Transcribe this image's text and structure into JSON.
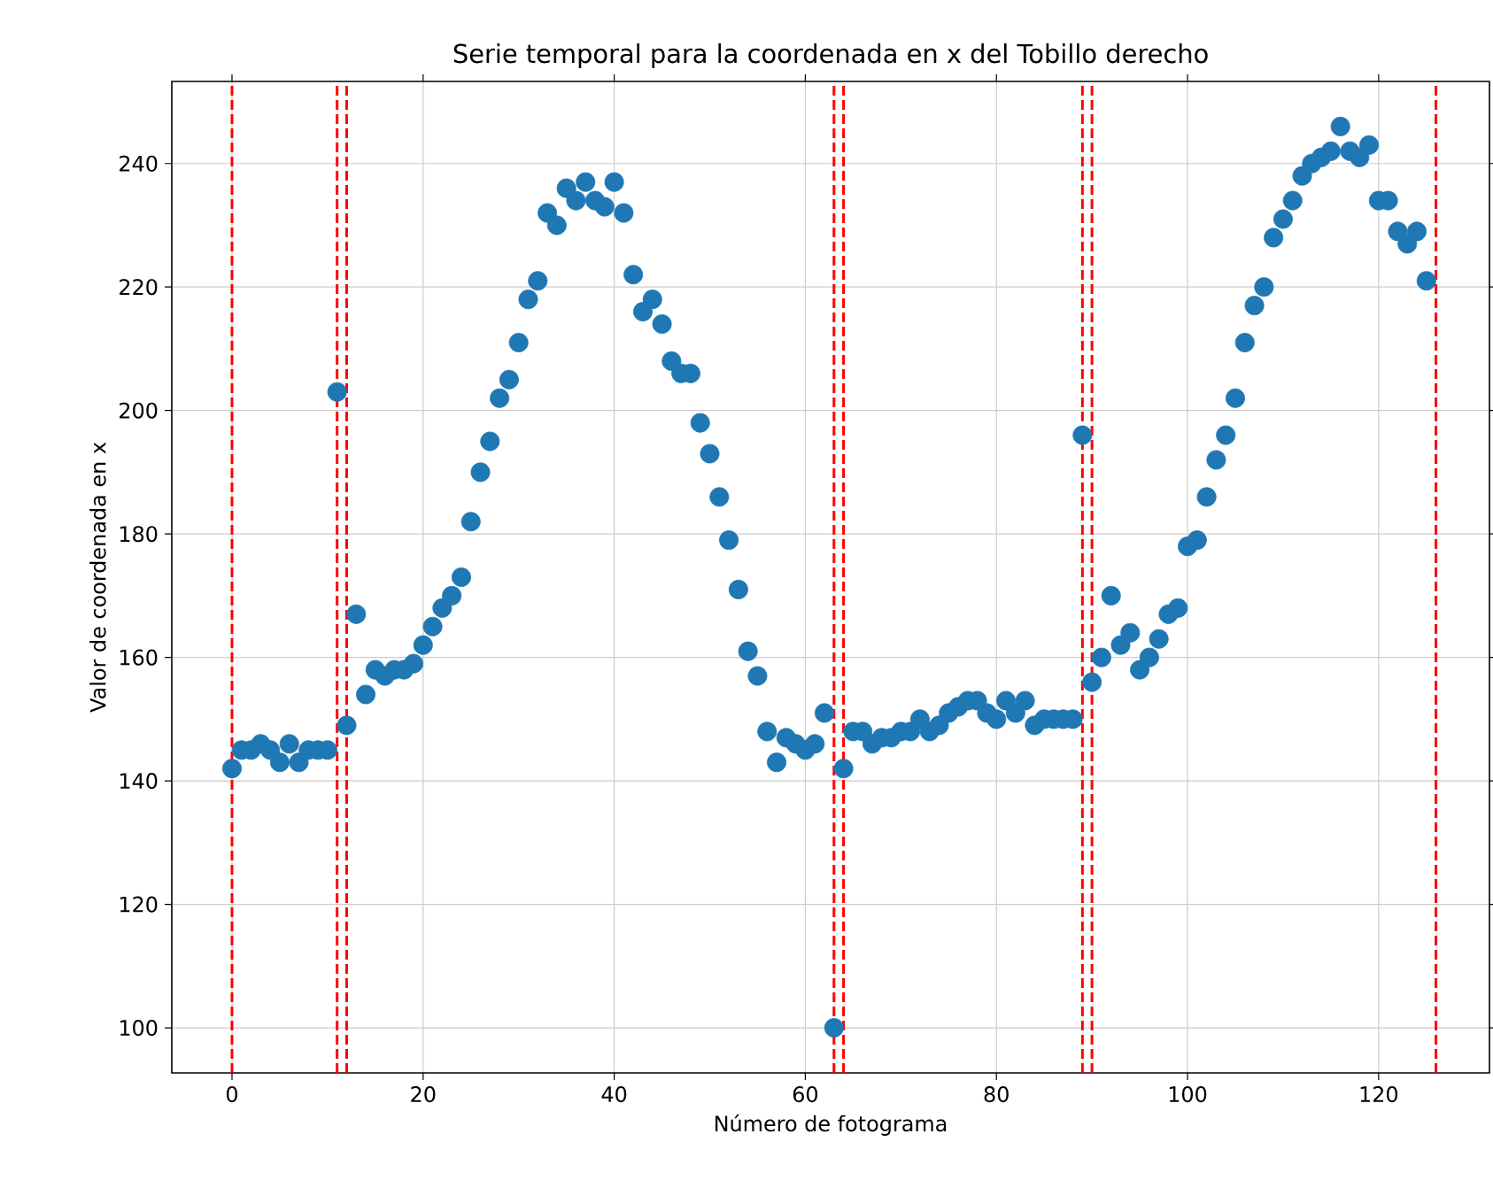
{
  "chart_data": {
    "type": "scatter",
    "title": "Serie temporal para la coordenada en x del Tobillo derecho",
    "xlabel": "Número de fotograma",
    "ylabel": "Valor de coordenada en x",
    "xlim": [
      -6.3,
      131.6
    ],
    "ylim": [
      92.7,
      253.3
    ],
    "xticks": [
      0,
      20,
      40,
      60,
      80,
      100,
      120
    ],
    "yticks": [
      100,
      120,
      140,
      160,
      180,
      200,
      220,
      240
    ],
    "grid": true,
    "marker": "circle",
    "series": [
      {
        "color": "#1f77b4",
        "x": [
          0,
          1,
          2,
          3,
          4,
          5,
          6,
          7,
          8,
          9,
          10,
          11,
          12,
          13,
          14,
          15,
          16,
          17,
          18,
          19,
          20,
          21,
          22,
          23,
          24,
          25,
          26,
          27,
          28,
          29,
          30,
          31,
          32,
          33,
          34,
          35,
          36,
          37,
          38,
          39,
          40,
          41,
          42,
          43,
          44,
          45,
          46,
          47,
          48,
          49,
          50,
          51,
          52,
          53,
          54,
          55,
          56,
          57,
          58,
          59,
          60,
          61,
          62,
          63,
          64,
          65,
          66,
          67,
          68,
          69,
          70,
          71,
          72,
          73,
          74,
          75,
          76,
          77,
          78,
          79,
          80,
          81,
          82,
          83,
          84,
          85,
          86,
          87,
          88,
          89,
          90,
          91,
          92,
          93,
          94,
          95,
          96,
          97,
          98,
          99,
          100,
          101,
          102,
          103,
          104,
          105,
          106,
          107,
          108,
          109,
          110,
          111,
          112,
          113,
          114,
          115,
          116,
          117,
          118,
          119,
          120,
          121,
          122,
          123,
          124,
          125
        ],
        "values": [
          142,
          145,
          145,
          146,
          145,
          143,
          146,
          143,
          145,
          145,
          145,
          203,
          149,
          167,
          154,
          158,
          157,
          158,
          158,
          159,
          162,
          165,
          168,
          170,
          173,
          182,
          190,
          195,
          202,
          205,
          211,
          218,
          221,
          232,
          230,
          236,
          234,
          237,
          234,
          233,
          237,
          232,
          222,
          216,
          218,
          214,
          208,
          206,
          206,
          198,
          193,
          186,
          179,
          171,
          161,
          157,
          148,
          143,
          147,
          146,
          145,
          146,
          151,
          100,
          142,
          148,
          148,
          146,
          147,
          147,
          148,
          148,
          150,
          148,
          149,
          151,
          152,
          153,
          153,
          151,
          150,
          153,
          151,
          153,
          149,
          150,
          150,
          150,
          150,
          196,
          156,
          160,
          170,
          162,
          164,
          158,
          160,
          163,
          167,
          168,
          178,
          179,
          186,
          192,
          196,
          202,
          211,
          217,
          220,
          228,
          231,
          234,
          238,
          240,
          241,
          242,
          246,
          242,
          241,
          243,
          234,
          234,
          229,
          227,
          229,
          221
        ]
      }
    ],
    "ref_lines": [
      {
        "axis": "x",
        "value": 0,
        "color": "#ff0000",
        "line_style": "dashed"
      },
      {
        "axis": "x",
        "value": 11,
        "color": "#ff0000",
        "line_style": "dashed"
      },
      {
        "axis": "x",
        "value": 12,
        "color": "#ff0000",
        "line_style": "dashed"
      },
      {
        "axis": "x",
        "value": 63,
        "color": "#ff0000",
        "line_style": "dashed"
      },
      {
        "axis": "x",
        "value": 64,
        "color": "#ff0000",
        "line_style": "dashed"
      },
      {
        "axis": "x",
        "value": 89,
        "color": "#ff0000",
        "line_style": "dashed"
      },
      {
        "axis": "x",
        "value": 90,
        "color": "#ff0000",
        "line_style": "dashed"
      },
      {
        "axis": "x",
        "value": 126,
        "color": "#ff0000",
        "line_style": "dashed"
      }
    ]
  }
}
